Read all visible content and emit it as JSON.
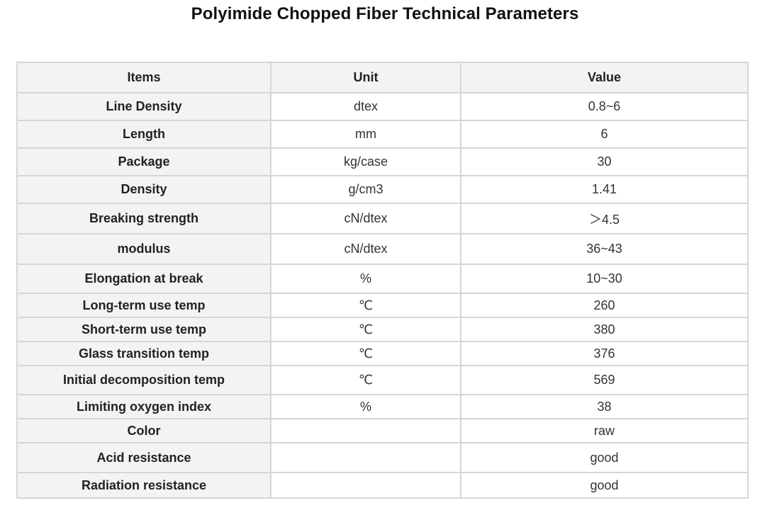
{
  "title": "Polyimide Chopped Fiber Technical Parameters",
  "table": {
    "headers": [
      "Items",
      "Unit",
      "Value"
    ],
    "rows": [
      {
        "item": "Line Density",
        "unit": "dtex",
        "value": "0.8~6"
      },
      {
        "item": "Length",
        "unit": "mm",
        "value": "6"
      },
      {
        "item": "Package",
        "unit": "kg/case",
        "value": "30"
      },
      {
        "item": "Density",
        "unit": "g/cm3",
        "value": "1.41"
      },
      {
        "item": "Breaking strength",
        "unit": "cN/dtex",
        "value": "＞4.5"
      },
      {
        "item": "modulus",
        "unit": "cN/dtex",
        "value": "36~43"
      },
      {
        "item": "Elongation at break",
        "unit": "%",
        "value": "10~30"
      },
      {
        "item": "Long-term use temp",
        "unit": "℃",
        "value": "260"
      },
      {
        "item": "Short-term use temp",
        "unit": "℃",
        "value": "380"
      },
      {
        "item": "Glass transition temp",
        "unit": "℃",
        "value": "376"
      },
      {
        "item": "Initial decomposition temp",
        "unit": "℃",
        "value": "569"
      },
      {
        "item": "Limiting oxygen index",
        "unit": "%",
        "value": "38"
      },
      {
        "item": "Color",
        "unit": "",
        "value": "raw"
      },
      {
        "item": "Acid resistance",
        "unit": "",
        "value": "good"
      },
      {
        "item": "Radiation resistance",
        "unit": "",
        "value": "good"
      }
    ]
  }
}
